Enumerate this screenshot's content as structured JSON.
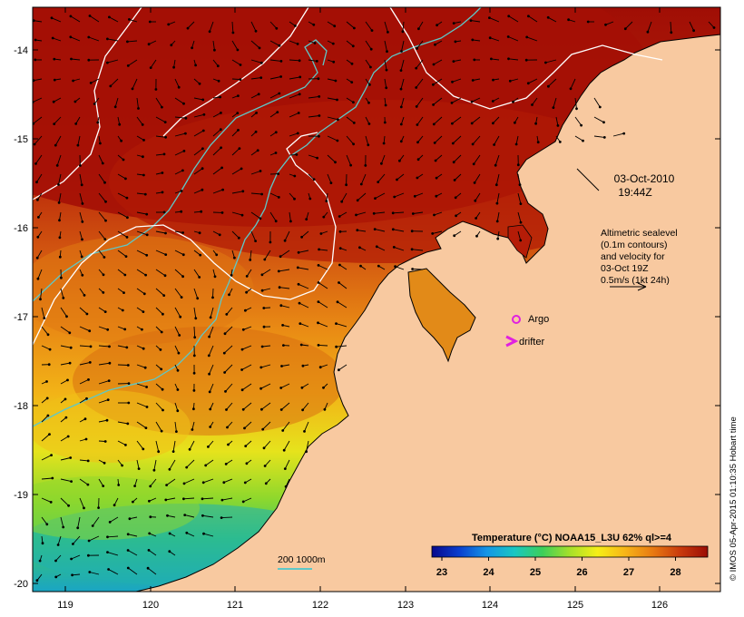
{
  "map": {
    "date": "03-Oct-2010",
    "time": "19:44Z",
    "legend_info": [
      "Altimetric sealevel",
      "(0.1m contours)",
      "and velocity for",
      "03-Oct 19Z",
      "0.5m/s (1kt 24h)"
    ],
    "markers": {
      "argo": "Argo",
      "drifter": "drifter"
    },
    "depth_legend": "200  1000m",
    "credit": "© IMOS 05-Apr-2015 01:10:35 Hobart time",
    "colorbar": {
      "title": "Temperature (°C) NOAA15_L3U 62% ql>=4",
      "ticks": [
        "23",
        "24",
        "25",
        "26",
        "27",
        "28"
      ],
      "colors": [
        "#08088c",
        "#0a3fcf",
        "#1496e6",
        "#19c7c2",
        "#3ccf5a",
        "#a6e02a",
        "#f5ef16",
        "#f7b517",
        "#e87a12",
        "#c93a0c",
        "#9b0d06"
      ]
    },
    "x_ticks": [
      "119",
      "120",
      "121",
      "122",
      "123",
      "124",
      "125",
      "126"
    ],
    "y_ticks": [
      "-14",
      "-15",
      "-16",
      "-17",
      "-18",
      "-19",
      "-20"
    ],
    "colors": {
      "land": "#f8c9a0",
      "sst_hot": "#a40f05",
      "sst_warm": "#e06c0f",
      "sst_mid": "#f4b017",
      "sst_cool": "#b8dc24",
      "sst_cold": "#1da6c0",
      "contour_sealevel": "#ffffff",
      "contour_depth": "#5ec8c8",
      "marker": "#e020e0"
    }
  }
}
